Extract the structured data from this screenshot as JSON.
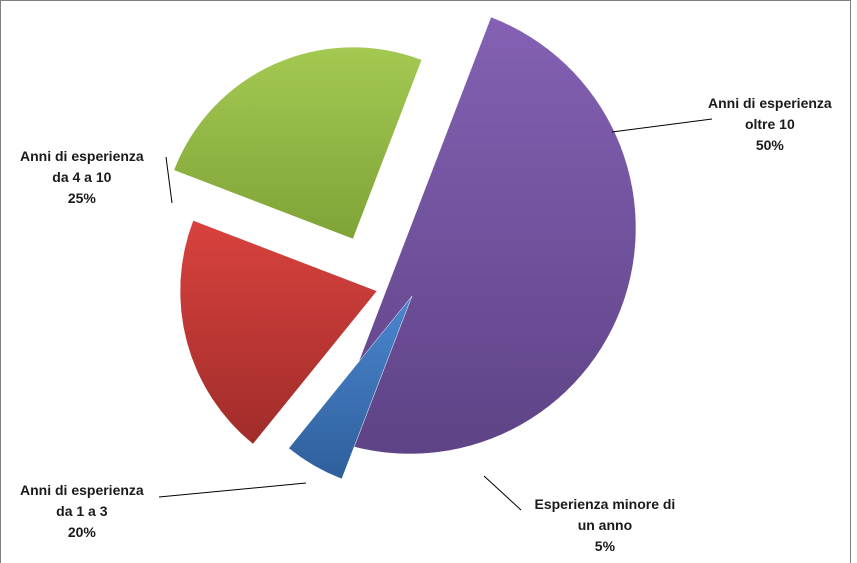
{
  "chart_data": {
    "type": "pie",
    "slices": [
      {
        "label_lines": [
          "Anni di esperienza",
          "oltre 10"
        ],
        "value": 50,
        "value_label": "50%",
        "color": "#7c5ca9"
      },
      {
        "label_lines": [
          "Esperienza minore di",
          "un anno"
        ],
        "value": 5,
        "value_label": "5%",
        "color": "#3f74bb"
      },
      {
        "label_lines": [
          "Anni di esperienza",
          "da 1 a 3"
        ],
        "value": 20,
        "value_label": "20%",
        "color": "#c23a37"
      },
      {
        "label_lines": [
          "Anni di esperienza",
          "da 4 a 10"
        ],
        "value": 25,
        "value_label": "25%",
        "color": "#94bc44"
      }
    ],
    "legend": "none"
  }
}
